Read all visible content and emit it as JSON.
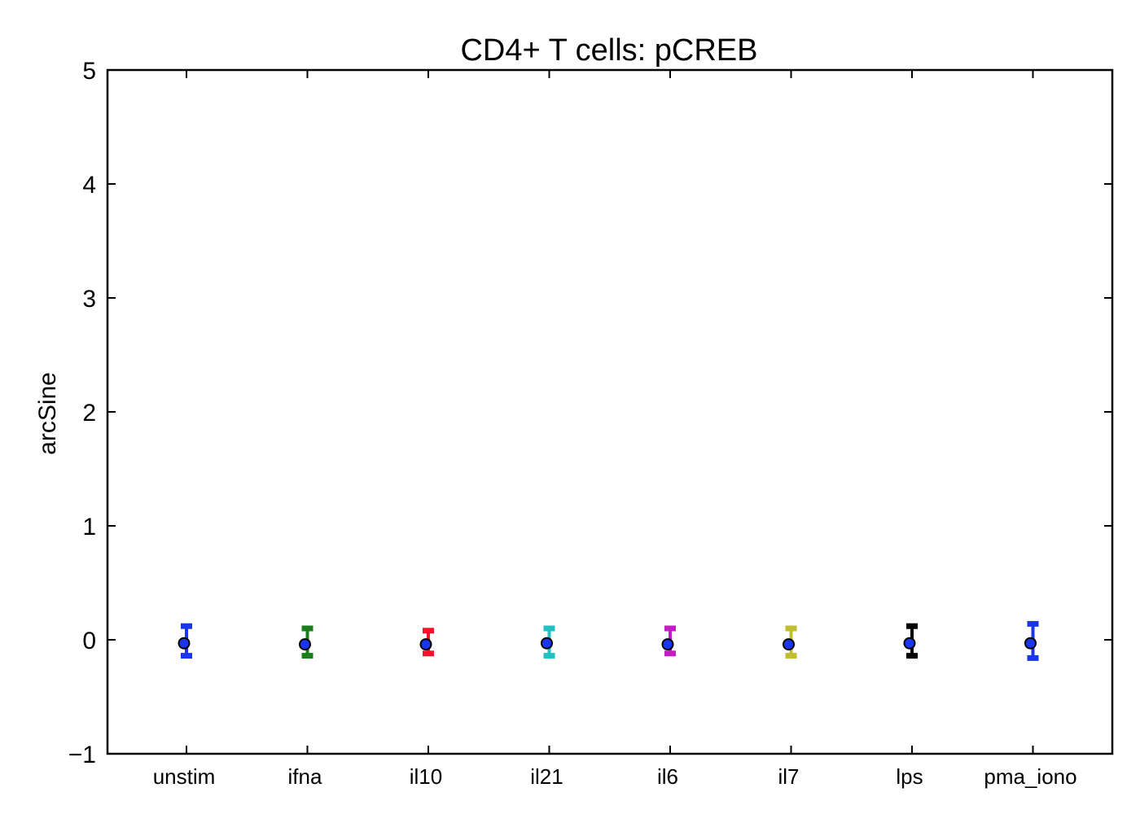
{
  "chart_data": {
    "type": "scatter",
    "title": "CD4+ T cells: pCREB",
    "xlabel": "",
    "ylabel": "arcSine",
    "ylim": [
      -1,
      5
    ],
    "yticks": [
      -1,
      0,
      1,
      2,
      3,
      4,
      5
    ],
    "ytick_labels": [
      "−1",
      "0",
      "1",
      "2",
      "3",
      "4",
      "5"
    ],
    "grid": false,
    "categories": [
      "unstim",
      "ifna",
      "il10",
      "il21",
      "il6",
      "il7",
      "lps",
      "pma_iono"
    ],
    "values": [
      -0.03,
      -0.04,
      -0.04,
      -0.03,
      -0.04,
      -0.04,
      -0.03,
      -0.03
    ],
    "err_low": [
      -0.14,
      -0.14,
      -0.12,
      -0.14,
      -0.12,
      -0.14,
      -0.14,
      -0.16
    ],
    "err_high": [
      0.12,
      0.1,
      0.08,
      0.1,
      0.1,
      0.1,
      0.12,
      0.14
    ],
    "errorbar_colors": [
      "#1a35ee",
      "#1a7f1a",
      "#f0142c",
      "#22c0c0",
      "#c020c0",
      "#c0bd30",
      "#000000",
      "#1a35ee"
    ],
    "marker_color": "#1a35ee"
  }
}
